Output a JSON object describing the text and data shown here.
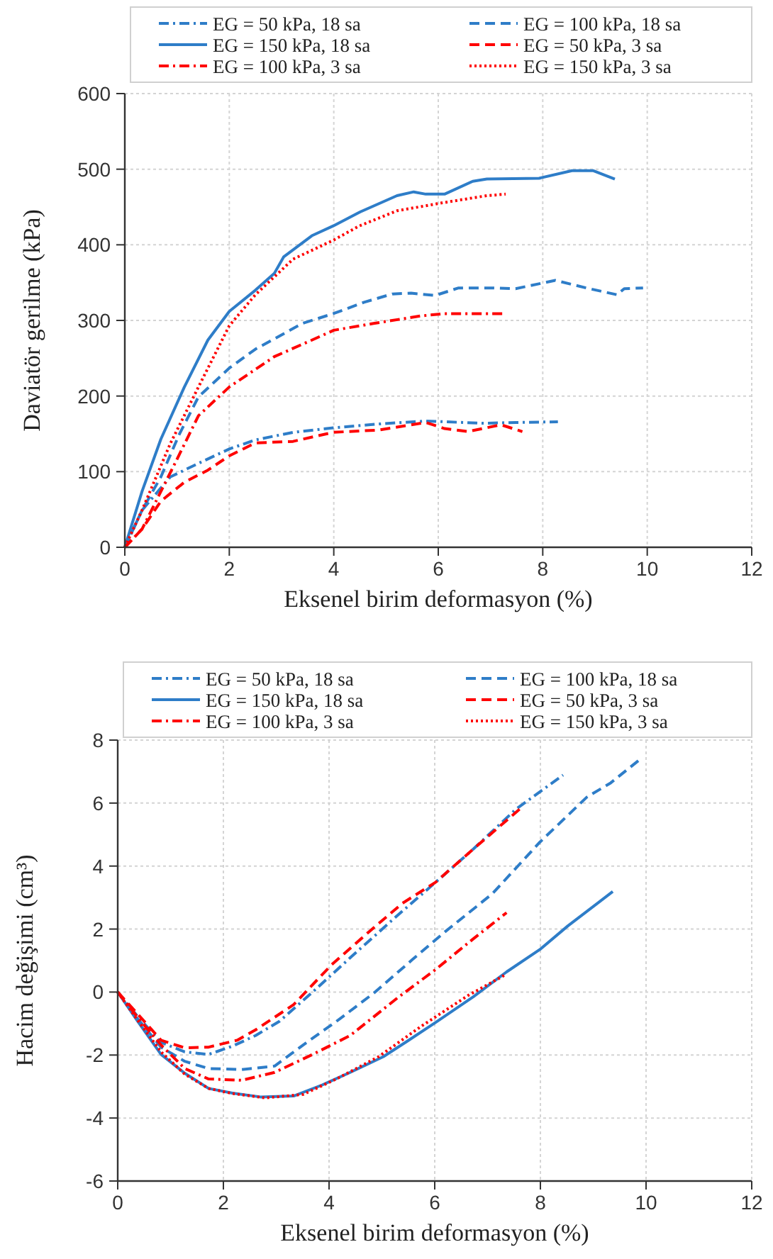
{
  "chart_data": [
    {
      "type": "line",
      "xlabel": "Eksenel birim deformasyon (%)",
      "ylabel": "Daviatör gerilme (kPa)",
      "xlim": [
        0,
        12
      ],
      "xticks": [
        0,
        2,
        4,
        6,
        8,
        10,
        12
      ],
      "ylim": [
        0,
        600
      ],
      "yticks": [
        0,
        100,
        200,
        300,
        400,
        500,
        600
      ],
      "grid": true,
      "legend": "top",
      "marker": "none",
      "series": [
        {
          "name": "EG = 50 kPa, 18 sa",
          "color": "#2e7dc8",
          "line_style": "dashdot",
          "x": [
            0,
            0.33,
            0.87,
            1.41,
            2.0,
            2.5,
            3.22,
            3.99,
            4.85,
            5.76,
            6.12,
            6.84,
            7.48,
            8.29
          ],
          "values": [
            0,
            49,
            93,
            111,
            130,
            142,
            152,
            158,
            163,
            167,
            166,
            164,
            165,
            166
          ]
        },
        {
          "name": "EG = 100 kPa, 18 sa",
          "color": "#2e7dc8",
          "line_style": "dashed",
          "x": [
            0,
            0.33,
            0.69,
            1.04,
            1.41,
            2.0,
            2.5,
            3.4,
            3.99,
            4.58,
            5.12,
            5.48,
            5.94,
            6.39,
            7.02,
            7.48,
            8.24,
            8.83,
            9.42,
            9.56,
            9.92
          ],
          "values": [
            0,
            49,
            93,
            149,
            199,
            237,
            262,
            296,
            309,
            324,
            335,
            336,
            333,
            343,
            343,
            342,
            353,
            343,
            334,
            342,
            343
          ]
        },
        {
          "name": "EG = 150 kPa, 18 sa",
          "color": "#2e7dc8",
          "line_style": "solid",
          "x": [
            0,
            0.33,
            0.69,
            1.14,
            1.59,
            2.0,
            2.5,
            2.86,
            3.04,
            3.58,
            3.99,
            4.49,
            5.21,
            5.53,
            5.76,
            6.12,
            6.66,
            6.93,
            7.93,
            8.56,
            8.97,
            9.38
          ],
          "values": [
            0,
            74,
            143,
            212,
            274,
            312,
            340,
            362,
            384,
            412,
            425,
            443,
            465,
            470,
            467,
            467,
            484,
            487,
            488,
            498,
            498,
            487
          ]
        },
        {
          "name": "EG = 50 kPa, 3 sa",
          "color": "#ff0000",
          "line_style": "dashed",
          "x": [
            0,
            0.33,
            0.69,
            1.14,
            1.59,
            2.0,
            2.5,
            3.22,
            3.99,
            4.85,
            5.76,
            6.12,
            6.57,
            7.2,
            7.61
          ],
          "values": [
            0,
            24,
            61,
            86,
            102,
            121,
            138,
            140,
            152,
            155,
            165,
            157,
            153,
            162,
            153
          ]
        },
        {
          "name": "EG = 100 kPa, 3 sa",
          "color": "#ff0000",
          "line_style": "dashdot",
          "x": [
            0,
            0.33,
            0.96,
            1.41,
            2.0,
            2.86,
            3.58,
            4.0,
            4.76,
            5.67,
            6.12,
            6.84,
            7.29
          ],
          "values": [
            0,
            24,
            111,
            174,
            212,
            252,
            274,
            287,
            296,
            306,
            309,
            309,
            309
          ]
        },
        {
          "name": "EG = 150 kPa, 3 sa",
          "color": "#ff0000",
          "line_style": "dotted",
          "x": [
            0,
            0.33,
            0.87,
            1.41,
            2.0,
            2.5,
            3.22,
            3.99,
            4.49,
            5.21,
            6.12,
            6.93,
            7.29
          ],
          "values": [
            0,
            49,
            137,
            212,
            293,
            334,
            381,
            406,
            425,
            445,
            456,
            465,
            467
          ]
        }
      ]
    },
    {
      "type": "line",
      "xlabel": "Eksenel birim deformasyon (%)",
      "ylabel": "Hacim değişimi (cm³)",
      "xlim": [
        0,
        12
      ],
      "xticks": [
        0,
        2,
        4,
        6,
        8,
        10,
        12
      ],
      "ylim": [
        -6,
        8
      ],
      "yticks": [
        -6,
        -4,
        -2,
        0,
        2,
        4,
        6,
        8
      ],
      "grid": true,
      "legend": "top",
      "marker": "none",
      "series": [
        {
          "name": "EG = 50 kPa, 18 sa",
          "color": "#2e7dc8",
          "line_style": "dashdot",
          "x": [
            0,
            0.38,
            0.82,
            1.27,
            1.72,
            2.17,
            2.61,
            3.06,
            3.69,
            4.4,
            5.3,
            6.02,
            6.73,
            7.54,
            8.43
          ],
          "values": [
            0,
            -0.78,
            -1.6,
            -1.9,
            -1.98,
            -1.72,
            -1.38,
            -0.93,
            0,
            1.09,
            2.44,
            3.49,
            4.54,
            5.81,
            6.89
          ]
        },
        {
          "name": "EG = 100 kPa, 18 sa",
          "color": "#2e7dc8",
          "line_style": "dashed",
          "x": [
            0,
            0.38,
            0.82,
            1.27,
            1.72,
            2.35,
            2.97,
            3.51,
            4.14,
            4.85,
            5.57,
            6.2,
            7.09,
            7.99,
            8.88,
            9.33,
            9.91
          ],
          "values": [
            0,
            -0.85,
            -1.75,
            -2.2,
            -2.43,
            -2.46,
            -2.35,
            -1.68,
            -0.93,
            -0.03,
            1.02,
            1.92,
            3.12,
            4.76,
            6.19,
            6.64,
            7.42
          ]
        },
        {
          "name": "EG = 150 kPa, 18 sa",
          "color": "#2e7dc8",
          "line_style": "solid",
          "x": [
            0,
            0.38,
            0.82,
            1.27,
            1.72,
            2.17,
            2.7,
            3.33,
            3.87,
            4.4,
            5.03,
            5.48,
            6.02,
            6.73,
            7.36,
            7.99,
            8.52,
            9.37
          ],
          "values": [
            0,
            -0.93,
            -1.98,
            -2.58,
            -3.06,
            -3.21,
            -3.33,
            -3.3,
            -2.95,
            -2.55,
            -2.05,
            -1.56,
            -0.96,
            -0.15,
            0.64,
            1.35,
            2.1,
            3.19
          ]
        },
        {
          "name": "EG = 50 kPa, 3 sa",
          "color": "#ff0000",
          "line_style": "dashed",
          "x": [
            0,
            0.38,
            0.82,
            1.27,
            1.72,
            2.26,
            2.61,
            3.33,
            4.05,
            4.76,
            5.39,
            6.02,
            6.73,
            7.63
          ],
          "values": [
            0,
            -0.7,
            -1.53,
            -1.77,
            -1.75,
            -1.53,
            -1.2,
            -0.4,
            0.87,
            1.92,
            2.82,
            3.49,
            4.54,
            5.84
          ]
        },
        {
          "name": "EG = 100 kPa, 3 sa",
          "color": "#ff0000",
          "line_style": "dashdot",
          "x": [
            0,
            0.38,
            0.82,
            1.27,
            1.72,
            2.35,
            2.97,
            3.69,
            4.4,
            5.3,
            6.02,
            6.73,
            7.36
          ],
          "values": [
            0,
            -0.81,
            -1.68,
            -2.43,
            -2.76,
            -2.8,
            -2.55,
            -1.98,
            -1.38,
            -0.18,
            0.72,
            1.69,
            2.52
          ]
        },
        {
          "name": "EG = 150 kPa, 3 sa",
          "color": "#ff0000",
          "line_style": "dotted",
          "x": [
            0,
            0.38,
            0.82,
            1.27,
            1.72,
            2.17,
            2.79,
            3.51,
            4.14,
            4.94,
            5.75,
            6.64,
            7.36
          ],
          "values": [
            0,
            -0.9,
            -1.9,
            -2.61,
            -3.06,
            -3.22,
            -3.36,
            -3.25,
            -2.76,
            -2.05,
            -1.08,
            -0.1,
            0.57
          ]
        }
      ]
    }
  ]
}
